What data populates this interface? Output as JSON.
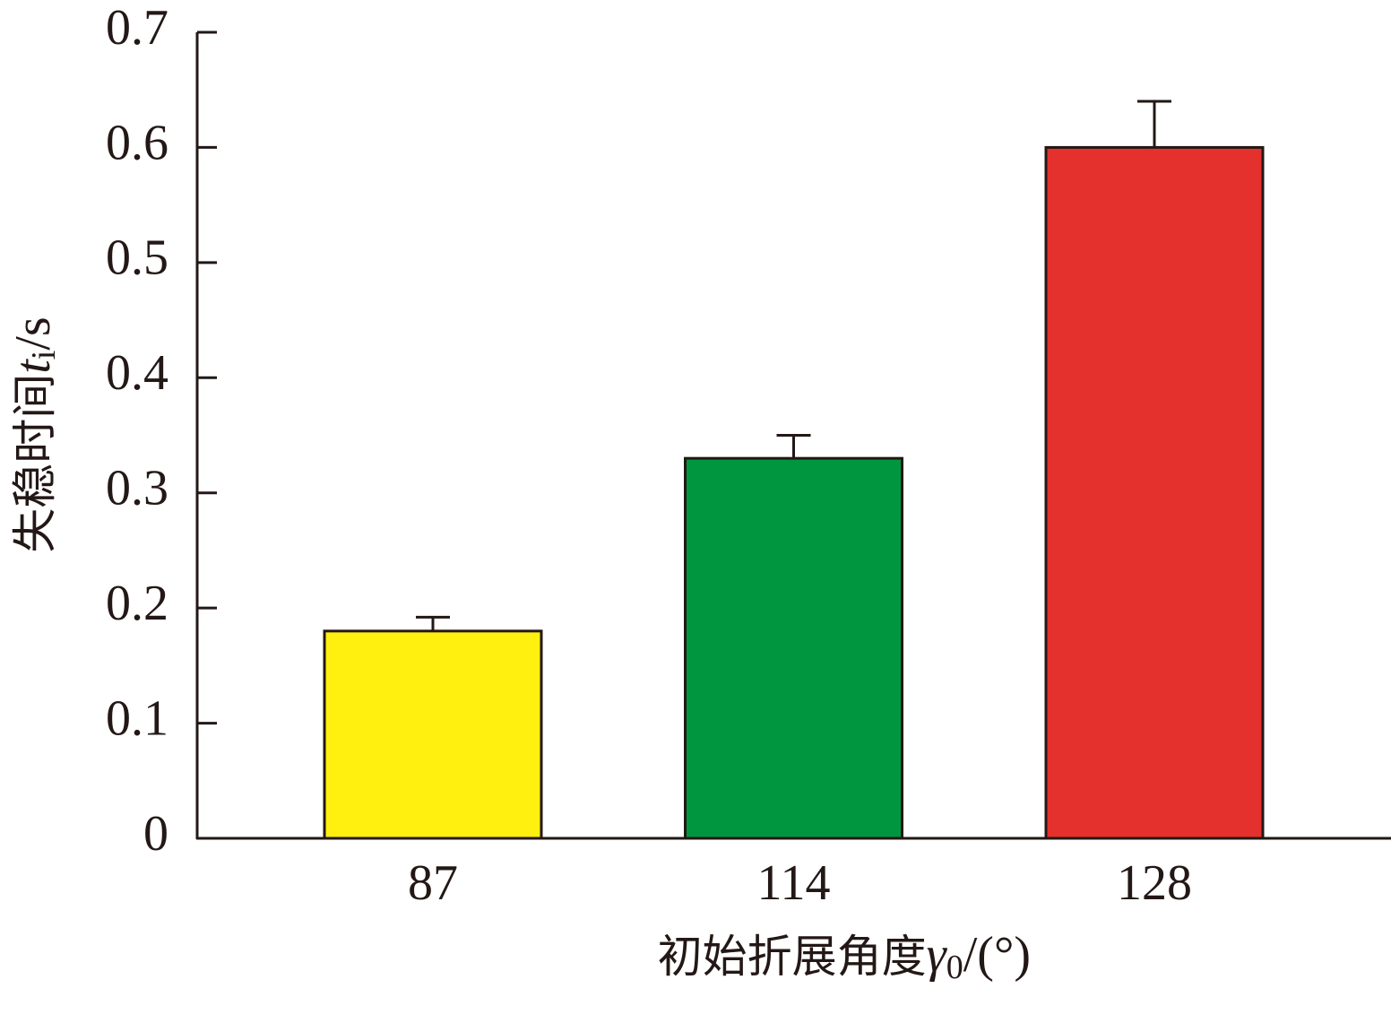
{
  "chart_data": {
    "type": "bar",
    "y_label": {
      "text": "失稳时间",
      "var": "t",
      "sub": "i",
      "unit": "/s"
    },
    "x_label": {
      "text": "初始折展角度",
      "var": "γ",
      "sub": "0",
      "unit": "/(°)"
    },
    "categories": [
      "87",
      "114",
      "128"
    ],
    "values": [
      0.18,
      0.33,
      0.6
    ],
    "errors": [
      0.012,
      0.02,
      0.04
    ],
    "colors": [
      "#fff010",
      "#009640",
      "#e4312d"
    ],
    "ylim": [
      0,
      0.7
    ],
    "yticks": [
      0,
      0.1,
      0.2,
      0.3,
      0.4,
      0.5,
      0.6,
      0.7
    ]
  }
}
